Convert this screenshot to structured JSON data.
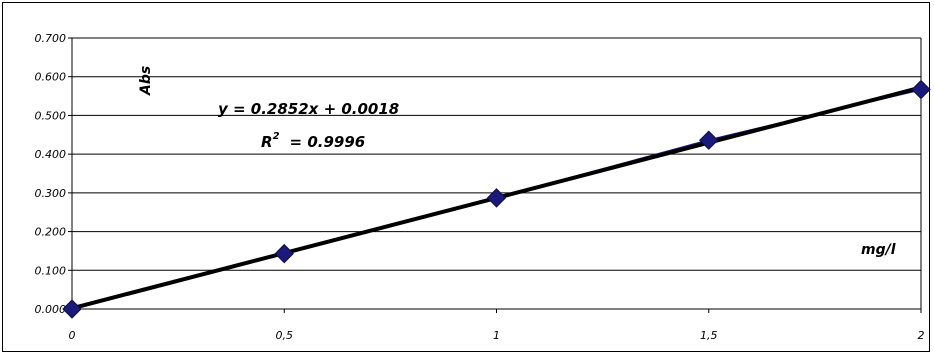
{
  "chart_data": {
    "type": "scatter",
    "title": "",
    "xlabel": "mg/l",
    "ylabel": "Abs",
    "xlim": [
      0,
      2
    ],
    "ylim": [
      0,
      0.7
    ],
    "x_ticks": [
      "0",
      "0,5",
      "1",
      "1,5",
      "2"
    ],
    "y_ticks": [
      "0.000",
      "0.100",
      "0.200",
      "0.300",
      "0.400",
      "0.500",
      "0.600",
      "0.700"
    ],
    "grid": "horizontal",
    "series": [
      {
        "x": [
          0,
          0.5,
          1,
          1.5,
          2
        ],
        "values": [
          0.0,
          0.143,
          0.287,
          0.436,
          0.567
        ],
        "marker": "diamond",
        "line_color": "#1a1a7a",
        "marker_color": "#1a1a7a"
      }
    ],
    "trendline": {
      "type": "linear",
      "slope": 0.2852,
      "intercept": 0.0018,
      "color": "#000000",
      "equation": "y = 0.2852x + 0.0018",
      "r2_prefix": "R",
      "r2_sup": "2",
      "r2_value": "= 0.9996"
    }
  }
}
